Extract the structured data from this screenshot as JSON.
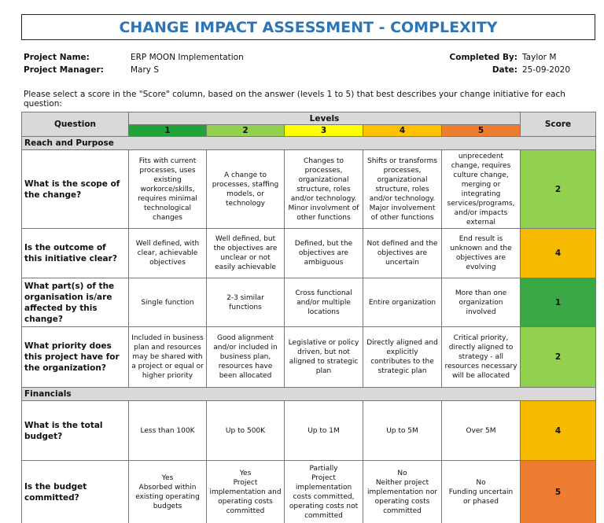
{
  "header": {
    "title": "CHANGE IMPACT ASSESSMENT - COMPLEXITY"
  },
  "project": {
    "name_label": "Project Name:",
    "name": "ERP MOON Implementation",
    "manager_label": "Project Manager:",
    "manager": "Mary S",
    "completed_by_label": "Completed By:",
    "completed_by": "Taylor M",
    "date_label": "Date:",
    "date": "25-09-2020"
  },
  "instruction": "Please select a score in the \"Score\" column, based on the answer (levels 1 to 5) that best describes your change initiative for each question:",
  "table": {
    "question_header": "Question",
    "levels_header": "Levels",
    "score_header": "Score",
    "levels": [
      {
        "label": "1",
        "color": "#21a339"
      },
      {
        "label": "2",
        "color": "#92d050"
      },
      {
        "label": "3",
        "color": "#ffff00"
      },
      {
        "label": "4",
        "color": "#ffc000"
      },
      {
        "label": "5",
        "color": "#ed7d31"
      }
    ],
    "sections": [
      {
        "title": "Reach and Purpose",
        "rows": [
          {
            "question": "What is the scope of the change?",
            "options": [
              "Fits with current processes, uses existing workorce/skills, requires minimal technological changes",
              "A change to processes, staffing models, or technology",
              "Changes to processes, organizational structure, roles and/or technology. Minor involvment of other functions",
              "Shifts or transforms processes, organizational structure, roles and/or technology. Major involvement of other functions",
              "Ground breaking, unprecedent change, requires culture change, merging or integrating services/programs, and/or impacts external stakeholders"
            ],
            "score": 2,
            "score_color": "#92d050"
          },
          {
            "question": "Is the outcome of this initiative clear?",
            "options": [
              "Well defined, with clear, achievable objectives",
              "Well defined, but the objectives are unclear or not easily achievable",
              "Defined, but the objectives are ambiguous",
              "Not defined and the objectives are uncertain",
              "End result is unknown and the objectives are evolving"
            ],
            "score": 4,
            "score_color": "#f6bb00"
          },
          {
            "question": "What part(s) of the organisation is/are affected by this change?",
            "options": [
              "Single function",
              "2-3 similar functions",
              "Cross functional and/or multiple locations",
              "Entire organization",
              "More than one organization involved"
            ],
            "score": 1,
            "score_color": "#3aa845"
          },
          {
            "question": "What priority does this project have for the organization?",
            "options": [
              "Included in business plan and resources may be shared with a project or equal or higher priority",
              "Good alignment and/or included in business plan, resources have been allocated",
              "Legislative or policy driven, but not aligned to strategic plan",
              "Directly aligned and explicitly contributes to the strategic plan",
              "Critical priority, directly aligned to strategy - all resources necessary will be allocated"
            ],
            "score": 2,
            "score_color": "#92d050"
          }
        ]
      },
      {
        "title": "Financials",
        "rows": [
          {
            "question": "What is the total budget?",
            "options": [
              "Less than 100K",
              "Up to 500K",
              "Up to 1M",
              "Up to 5M",
              "Over 5M"
            ],
            "score": 4,
            "score_color": "#f6bb00"
          },
          {
            "question": "Is the budget committed?",
            "options": [
              "Yes\nAbsorbed within existing operating budgets",
              "Yes\nProject implementation and operating costs committed",
              "Partially\nProject implementation costs committed, operating costs not committed",
              "No\nNeither project implementation nor operating costs committed",
              "No\nFunding uncertain or phased"
            ],
            "score": 5,
            "score_color": "#ed7d31"
          }
        ]
      }
    ]
  }
}
